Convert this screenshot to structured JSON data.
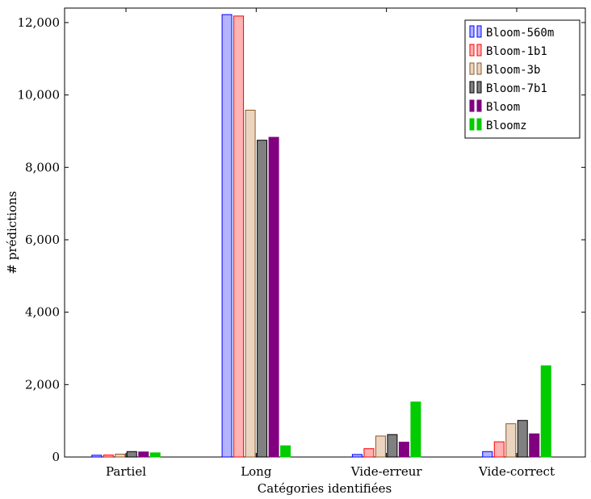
{
  "chart_data": {
    "type": "bar",
    "xlabel": "Catégories identifiées",
    "ylabel": "# prédictions",
    "categories": [
      "Partiel",
      "Long",
      "Vide-erreur",
      "Vide-correct"
    ],
    "ylim": [
      0,
      12400
    ],
    "yticks": [
      0,
      2000,
      4000,
      6000,
      8000,
      10000,
      12000
    ],
    "ytick_labels": [
      "0",
      "2,000",
      "4,000",
      "6,000",
      "8,000",
      "10,000",
      "12,000"
    ],
    "grid": false,
    "legend_position": "top-right",
    "series": [
      {
        "name": "Bloom-560m",
        "color": "#b3b3ff",
        "stroke": "#0000ff",
        "values": [
          50,
          12220,
          70,
          150
        ]
      },
      {
        "name": "Bloom-1b1",
        "color": "#ffb3b3",
        "stroke": "#ff0000",
        "values": [
          55,
          12180,
          230,
          420
        ]
      },
      {
        "name": "Bloom-3b",
        "color": "#ecd5c0",
        "stroke": "#8b5a2b",
        "values": [
          80,
          9580,
          580,
          920
        ]
      },
      {
        "name": "Bloom-7b1",
        "color": "#808080",
        "stroke": "#000000",
        "values": [
          150,
          8750,
          620,
          1010
        ]
      },
      {
        "name": "Bloom",
        "color": "#800080",
        "stroke": "#800080",
        "values": [
          140,
          8830,
          410,
          640
        ]
      },
      {
        "name": "Bloomz",
        "color": "#00cc00",
        "stroke": "#00cc00",
        "values": [
          115,
          310,
          1520,
          2520
        ]
      }
    ]
  }
}
